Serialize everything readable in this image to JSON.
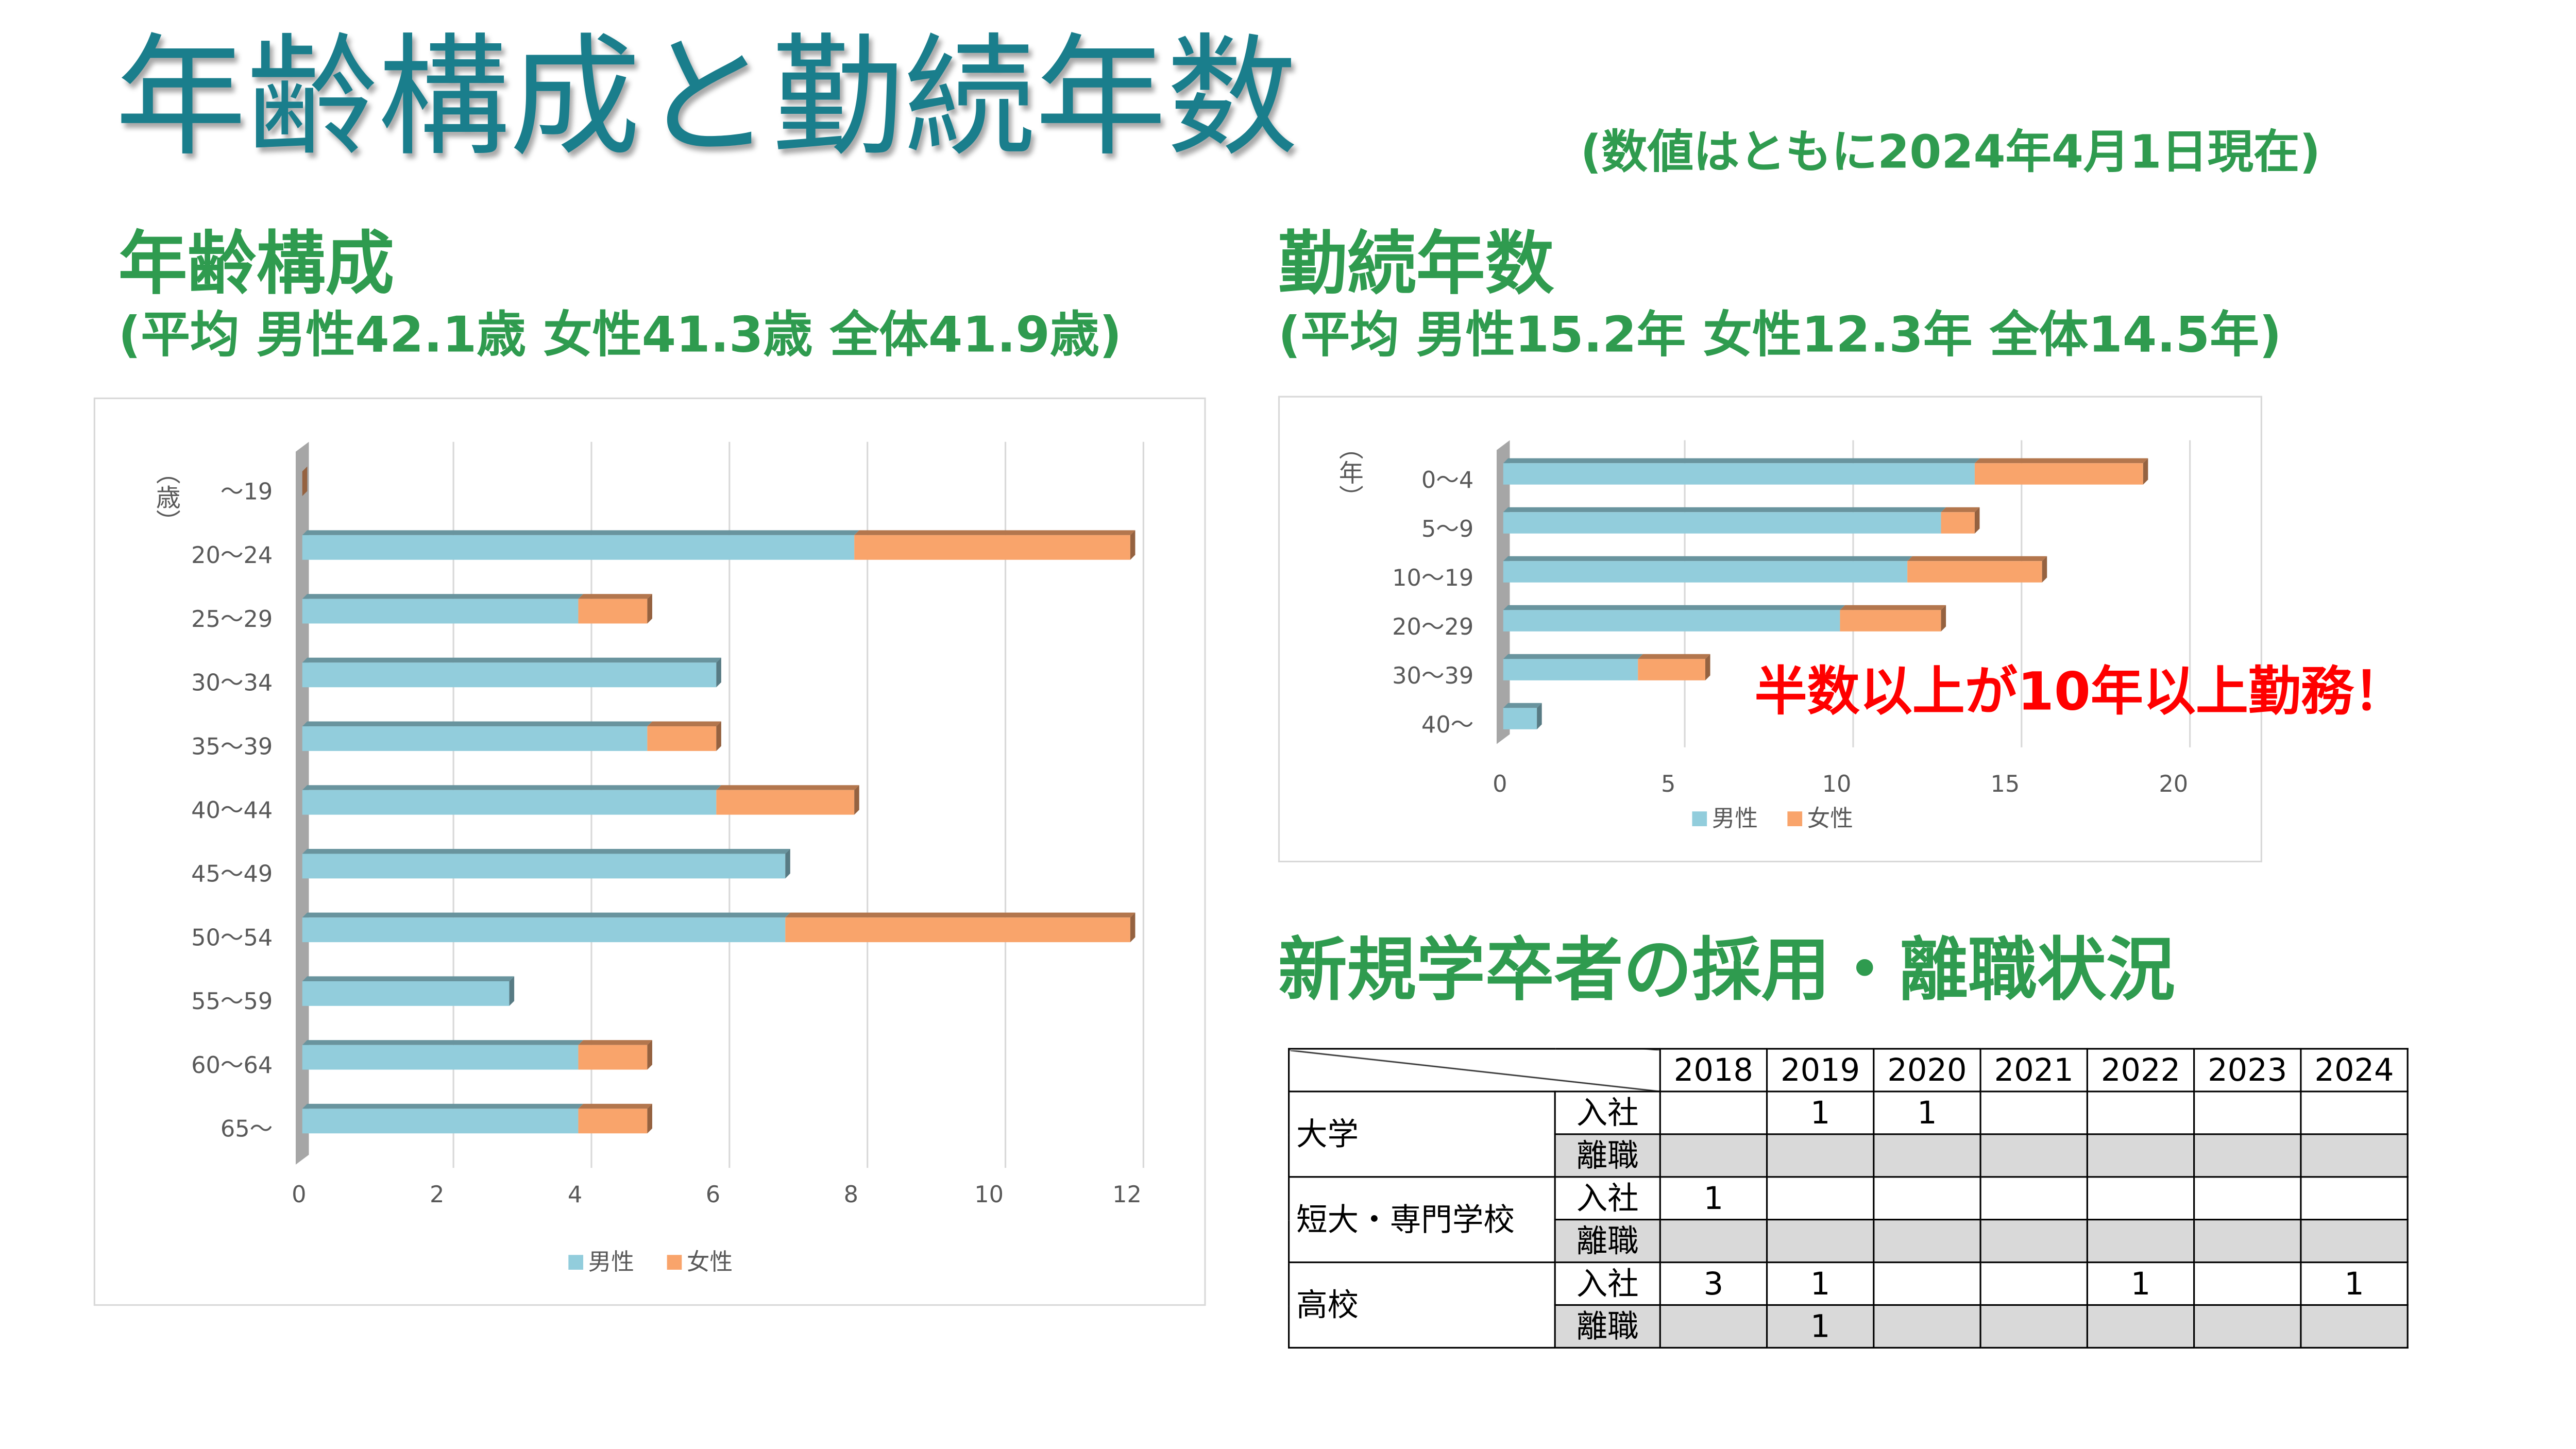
{
  "title": "年齢構成と勤続年数",
  "date_note": "(数値はともに2024年4月1日現在)",
  "age_section": {
    "heading": "年齢構成",
    "averages": "(平均 男性42.1歳 女性41.3歳 全体41.9歳)"
  },
  "tenure_section": {
    "heading": "勤続年数",
    "averages": "(平均 男性15.2年 女性12.3年 全体14.5年)",
    "callout": "半数以上が10年以上勤務！"
  },
  "hiring_section": {
    "heading": "新規学卒者の採用・離職状況",
    "table": {
      "years": [
        "2018",
        "2019",
        "2020",
        "2021",
        "2022",
        "2023",
        "2024"
      ],
      "groups": [
        {
          "label": "大学",
          "rows": [
            {
              "type": "入社",
              "values": [
                "",
                "1",
                "1",
                "",
                "",
                "",
                ""
              ]
            },
            {
              "type": "離職",
              "values": [
                "",
                "",
                "",
                "",
                "",
                "",
                ""
              ]
            }
          ]
        },
        {
          "label": "短大・専門学校",
          "rows": [
            {
              "type": "入社",
              "values": [
                "1",
                "",
                "",
                "",
                "",
                "",
                ""
              ]
            },
            {
              "type": "離職",
              "values": [
                "",
                "",
                "",
                "",
                "",
                "",
                ""
              ]
            }
          ]
        },
        {
          "label": "高校",
          "rows": [
            {
              "type": "入社",
              "values": [
                "3",
                "1",
                "",
                "",
                "1",
                "",
                "1"
              ]
            },
            {
              "type": "離職",
              "values": [
                "",
                "1",
                "",
                "",
                "",
                "",
                ""
              ]
            }
          ]
        }
      ]
    }
  },
  "colors": {
    "title": "#1a7e8c",
    "heading": "#2f9b4f",
    "callout": "#ff0000",
    "male": "#92cddc",
    "female": "#f9a46b",
    "table_shade": "#d9d9d9"
  },
  "chart_data": [
    {
      "type": "bar",
      "orientation": "horizontal",
      "stacked": true,
      "style": "3d",
      "categories": [
        "～19",
        "20～24",
        "25～29",
        "30～34",
        "35～39",
        "40～44",
        "45～49",
        "50～54",
        "55～59",
        "60～64",
        "65～"
      ],
      "series": [
        {
          "name": "男性",
          "values": [
            0,
            8,
            4,
            6,
            5,
            6,
            7,
            7,
            3,
            4,
            4
          ]
        },
        {
          "name": "女性",
          "values": [
            0,
            4,
            1,
            0,
            1,
            2,
            0,
            5,
            0,
            1,
            1
          ]
        }
      ],
      "ylabel": "（歳）",
      "xticks": [
        0,
        2,
        4,
        6,
        8,
        10,
        12
      ],
      "xlim": [
        0,
        12
      ],
      "grid": true,
      "legend": "bottom"
    },
    {
      "type": "bar",
      "orientation": "horizontal",
      "stacked": true,
      "style": "3d",
      "categories": [
        "0～4",
        "5～9",
        "10～19",
        "20～29",
        "30～39",
        "40～"
      ],
      "series": [
        {
          "name": "男性",
          "values": [
            14,
            13,
            12,
            10,
            4,
            1
          ]
        },
        {
          "name": "女性",
          "values": [
            5,
            1,
            4,
            3,
            2,
            0
          ]
        }
      ],
      "ylabel": "（年）",
      "xticks": [
        0,
        5,
        10,
        15,
        20
      ],
      "xlim": [
        0,
        20
      ],
      "grid": true,
      "legend": "bottom"
    }
  ]
}
